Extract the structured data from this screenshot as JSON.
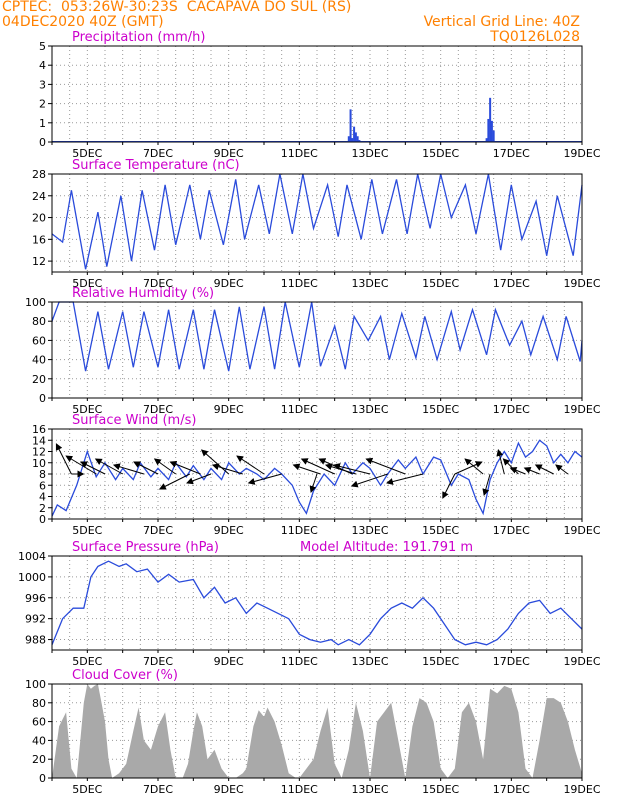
{
  "header": {
    "line1": "CPTEC:  053:26W-30:23S  CACAPAVA DO SUL (RS)",
    "line2_left": "04DEC2020 40Z (GMT)",
    "line2_right": "Vertical Grid Line: 40Z",
    "line3_right": "TQ0126L028"
  },
  "colors": {
    "header": "#ff8000",
    "title": "#cc00cc",
    "line": "#2a4bdb",
    "bar": "#2a4bdb",
    "cloud": "#a9a9a9",
    "wind_arrow": "#000000",
    "grid": "#9a9a9a"
  },
  "chart_data": [
    {
      "type": "bar",
      "title": "Precipitation (mm/h)",
      "xlim": [
        4,
        19
      ],
      "xticks": [
        5,
        7,
        9,
        11,
        13,
        15,
        17,
        19
      ],
      "xticklabels": [
        "5DEC",
        "7DEC",
        "9DEC",
        "11DEC",
        "13DEC",
        "15DEC",
        "17DEC",
        "19DEC"
      ],
      "ylim": [
        0,
        5
      ],
      "yticks": [
        0,
        1,
        2,
        3,
        4,
        5
      ],
      "grid": true,
      "x": [
        12.4,
        12.45,
        12.5,
        12.55,
        12.6,
        12.65,
        12.7,
        16.3,
        16.35,
        16.4,
        16.45,
        16.5
      ],
      "values": [
        0.3,
        1.7,
        0.2,
        0.8,
        0.5,
        0.3,
        0.1,
        0.2,
        1.2,
        2.3,
        1.1,
        0.6
      ]
    },
    {
      "type": "line",
      "title": "Surface Temperature (nC)",
      "xlim": [
        4,
        19
      ],
      "xticks": [
        5,
        7,
        9,
        11,
        13,
        15,
        17,
        19
      ],
      "xticklabels": [
        "5DEC",
        "7DEC",
        "9DEC",
        "11DEC",
        "13DEC",
        "15DEC",
        "17DEC",
        "19DEC"
      ],
      "ylim": [
        10,
        28
      ],
      "yticks": [
        12,
        16,
        20,
        24,
        28
      ],
      "grid": true,
      "x": [
        4.0,
        4.3,
        4.55,
        4.95,
        5.3,
        5.55,
        5.95,
        6.25,
        6.55,
        6.9,
        7.2,
        7.5,
        7.9,
        8.2,
        8.45,
        8.85,
        9.2,
        9.45,
        9.85,
        10.15,
        10.45,
        10.8,
        11.1,
        11.4,
        11.8,
        12.1,
        12.35,
        12.75,
        13.05,
        13.35,
        13.75,
        14.05,
        14.35,
        14.7,
        15.0,
        15.3,
        15.7,
        16.0,
        16.35,
        16.7,
        17.0,
        17.3,
        17.7,
        18.0,
        18.3,
        18.75,
        19.0
      ],
      "values": [
        17,
        15.5,
        25,
        10.5,
        21,
        11,
        24,
        12,
        25,
        14,
        26,
        15,
        26,
        16,
        25,
        15,
        27,
        16,
        26,
        17,
        28,
        17,
        28,
        18,
        26,
        16.5,
        26,
        16,
        27,
        17,
        27,
        17,
        28,
        18,
        28,
        20,
        26,
        17,
        28,
        14,
        26,
        16,
        23,
        13,
        24,
        13,
        26
      ]
    },
    {
      "type": "line",
      "title": "Relative Humidity (%)",
      "xlim": [
        4,
        19
      ],
      "xticks": [
        5,
        7,
        9,
        11,
        13,
        15,
        17,
        19
      ],
      "xticklabels": [
        "5DEC",
        "7DEC",
        "9DEC",
        "11DEC",
        "13DEC",
        "15DEC",
        "17DEC",
        "19DEC"
      ],
      "ylim": [
        0,
        100
      ],
      "yticks": [
        0,
        20,
        40,
        60,
        80,
        100
      ],
      "grid": true,
      "x": [
        4.0,
        4.2,
        4.6,
        4.95,
        5.3,
        5.6,
        6.0,
        6.3,
        6.6,
        7.0,
        7.3,
        7.6,
        8.0,
        8.3,
        8.6,
        9.0,
        9.3,
        9.6,
        10.0,
        10.3,
        10.6,
        11.0,
        11.35,
        11.6,
        12.0,
        12.3,
        12.55,
        12.95,
        13.3,
        13.55,
        13.9,
        14.3,
        14.55,
        14.9,
        15.3,
        15.55,
        15.9,
        16.3,
        16.55,
        16.95,
        17.3,
        17.55,
        17.9,
        18.3,
        18.55,
        18.95,
        19.0
      ],
      "values": [
        80,
        100,
        100,
        28,
        90,
        30,
        90,
        32,
        90,
        32,
        92,
        30,
        92,
        30,
        92,
        28,
        95,
        30,
        95,
        30,
        100,
        32,
        100,
        33,
        75,
        30,
        85,
        60,
        85,
        40,
        88,
        42,
        85,
        40,
        90,
        50,
        92,
        45,
        92,
        55,
        80,
        45,
        85,
        40,
        85,
        38,
        60
      ]
    },
    {
      "type": "line",
      "title": "Surface Wind (m/s)",
      "xlim": [
        4,
        19
      ],
      "xticks": [
        5,
        7,
        9,
        11,
        13,
        15,
        17,
        19
      ],
      "xticklabels": [
        "5DEC",
        "7DEC",
        "9DEC",
        "11DEC",
        "13DEC",
        "15DEC",
        "17DEC",
        "19DEC"
      ],
      "ylim": [
        0,
        16
      ],
      "yticks": [
        0,
        2,
        4,
        6,
        8,
        10,
        12,
        14,
        16
      ],
      "grid": true,
      "x": [
        4.0,
        4.15,
        4.4,
        4.7,
        5.0,
        5.25,
        5.5,
        5.8,
        6.0,
        6.3,
        6.5,
        6.8,
        7.0,
        7.3,
        7.5,
        7.8,
        8.0,
        8.3,
        8.5,
        8.8,
        9.0,
        9.3,
        9.5,
        9.8,
        10.0,
        10.3,
        10.5,
        10.8,
        11.0,
        11.2,
        11.4,
        11.7,
        12.0,
        12.3,
        12.5,
        12.8,
        13.0,
        13.3,
        13.5,
        13.8,
        14.0,
        14.3,
        14.5,
        14.8,
        15.0,
        15.3,
        15.5,
        15.8,
        16.0,
        16.2,
        16.4,
        16.6,
        16.8,
        17.0,
        17.2,
        17.4,
        17.6,
        17.8,
        18.0,
        18.2,
        18.4,
        18.6,
        18.8,
        19.0
      ],
      "values": [
        0.5,
        2.5,
        1.5,
        6,
        12,
        7.5,
        10,
        7,
        9,
        7,
        10,
        7.5,
        9,
        7,
        10,
        7.5,
        9.5,
        7,
        9,
        7,
        10,
        8,
        9,
        8,
        7,
        9,
        8,
        6,
        3,
        1,
        5,
        8,
        6,
        10,
        8,
        10,
        9,
        6,
        8,
        10.5,
        9,
        11,
        8,
        11,
        10.5,
        6,
        8,
        7,
        3.5,
        1,
        7,
        10,
        12,
        10,
        13.5,
        11,
        12,
        14,
        13,
        10,
        11.5,
        10,
        12,
        11
      ]
    },
    {
      "type": "line",
      "title": "Surface Pressure (hPa)",
      "annotations": [
        "Model Altitude: 191.791 m"
      ],
      "xlim": [
        4,
        19
      ],
      "xticks": [
        5,
        7,
        9,
        11,
        13,
        15,
        17,
        19
      ],
      "xticklabels": [
        "5DEC",
        "7DEC",
        "9DEC",
        "11DEC",
        "13DEC",
        "15DEC",
        "17DEC",
        "19DEC"
      ],
      "ylim": [
        986,
        1004
      ],
      "yticks": [
        988,
        992,
        996,
        1000,
        1004
      ],
      "grid": true,
      "x": [
        4.0,
        4.3,
        4.6,
        4.9,
        5.1,
        5.3,
        5.6,
        5.9,
        6.1,
        6.4,
        6.7,
        7.0,
        7.3,
        7.6,
        8.0,
        8.3,
        8.6,
        8.9,
        9.2,
        9.5,
        9.8,
        10.1,
        10.4,
        10.7,
        11.0,
        11.3,
        11.6,
        11.9,
        12.1,
        12.4,
        12.7,
        13.0,
        13.3,
        13.6,
        13.9,
        14.2,
        14.5,
        14.8,
        15.1,
        15.4,
        15.7,
        16.0,
        16.3,
        16.6,
        16.9,
        17.2,
        17.5,
        17.8,
        18.1,
        18.4,
        18.7,
        19.0
      ],
      "values": [
        987,
        992,
        994,
        994,
        1000,
        1002,
        1003,
        1002,
        1002.5,
        1001,
        1001.5,
        999,
        1000.5,
        999,
        999.5,
        996,
        998,
        995,
        996,
        993,
        995,
        994,
        993,
        992,
        989,
        988,
        987.5,
        988,
        987,
        988,
        987,
        989,
        992,
        994,
        995,
        994,
        996,
        994,
        991,
        988,
        987,
        987.5,
        987,
        988,
        990,
        993,
        995,
        995.5,
        993,
        994,
        992,
        990
      ]
    },
    {
      "type": "area",
      "title": "Cloud Cover (%)",
      "xlim": [
        4,
        19
      ],
      "xticks": [
        5,
        7,
        9,
        11,
        13,
        15,
        17,
        19
      ],
      "xticklabels": [
        "5DEC",
        "7DEC",
        "9DEC",
        "11DEC",
        "13DEC",
        "15DEC",
        "17DEC",
        "19DEC"
      ],
      "ylim": [
        0,
        100
      ],
      "yticks": [
        0,
        20,
        40,
        60,
        80,
        100
      ],
      "grid": true,
      "x": [
        4.0,
        4.2,
        4.4,
        4.55,
        4.7,
        4.8,
        4.9,
        5.0,
        5.1,
        5.2,
        5.3,
        5.4,
        5.5,
        5.6,
        5.7,
        5.9,
        6.1,
        6.3,
        6.45,
        6.6,
        6.8,
        7.0,
        7.2,
        7.35,
        7.5,
        7.7,
        7.85,
        8.0,
        8.1,
        8.25,
        8.4,
        8.6,
        8.8,
        9.0,
        9.2,
        9.4,
        9.5,
        9.7,
        9.85,
        10.0,
        10.1,
        10.3,
        10.5,
        10.7,
        10.9,
        11.0,
        11.2,
        11.4,
        11.6,
        11.8,
        12.0,
        12.2,
        12.4,
        12.6,
        12.8,
        13.0,
        13.2,
        13.4,
        13.6,
        13.8,
        14.0,
        14.2,
        14.4,
        14.6,
        14.8,
        15.0,
        15.2,
        15.4,
        15.6,
        15.8,
        16.0,
        16.2,
        16.4,
        16.6,
        16.8,
        17.0,
        17.2,
        17.4,
        17.6,
        17.8,
        18.0,
        18.2,
        18.4,
        18.6,
        18.8,
        19.0
      ],
      "values": [
        0,
        55,
        70,
        10,
        0,
        40,
        80,
        100,
        95,
        98,
        100,
        80,
        60,
        20,
        0,
        5,
        15,
        50,
        75,
        40,
        30,
        55,
        70,
        30,
        0,
        0,
        15,
        50,
        70,
        55,
        20,
        30,
        10,
        0,
        0,
        5,
        10,
        55,
        72,
        65,
        75,
        60,
        35,
        5,
        0,
        0,
        10,
        20,
        50,
        75,
        15,
        0,
        30,
        80,
        50,
        0,
        60,
        70,
        80,
        40,
        0,
        55,
        85,
        80,
        60,
        10,
        0,
        10,
        70,
        80,
        60,
        20,
        95,
        90,
        98,
        95,
        70,
        10,
        0,
        40,
        85,
        85,
        80,
        60,
        30,
        5
      ]
    }
  ],
  "wind_vectors": [
    {
      "x": 4.55,
      "u": -5,
      "v": 10
    },
    {
      "x": 4.55,
      "u": 4,
      "v": 0
    },
    {
      "x": 5.25,
      "u": -10,
      "v": 6
    },
    {
      "x": 5.5,
      "u": -8,
      "v": 4
    },
    {
      "x": 6.0,
      "u": -9,
      "v": 5
    },
    {
      "x": 6.6,
      "u": -10,
      "v": 3
    },
    {
      "x": 7.0,
      "u": -8,
      "v": 4
    },
    {
      "x": 7.5,
      "u": -7,
      "v": 5
    },
    {
      "x": 7.9,
      "u": -10,
      "v": -5
    },
    {
      "x": 8.2,
      "u": -10,
      "v": 4
    },
    {
      "x": 8.5,
      "u": -8,
      "v": -3
    },
    {
      "x": 9.0,
      "u": -9,
      "v": 8
    },
    {
      "x": 9.4,
      "u": -10,
      "v": 3
    },
    {
      "x": 10.0,
      "u": -9,
      "v": 6
    },
    {
      "x": 10.5,
      "u": -11,
      "v": -3
    },
    {
      "x": 11.5,
      "u": -2,
      "v": -6
    },
    {
      "x": 11.6,
      "u": -9,
      "v": 3
    },
    {
      "x": 12.0,
      "u": -11,
      "v": 5
    },
    {
      "x": 12.5,
      "u": -11,
      "v": 5
    },
    {
      "x": 12.6,
      "u": -10,
      "v": 3
    },
    {
      "x": 13.0,
      "u": -12,
      "v": 3
    },
    {
      "x": 13.5,
      "u": -12,
      "v": -4
    },
    {
      "x": 14.0,
      "u": -13,
      "v": 5
    },
    {
      "x": 14.5,
      "u": -12,
      "v": -3
    },
    {
      "x": 15.4,
      "u": -4,
      "v": -8
    },
    {
      "x": 15.4,
      "u": 9,
      "v": 4
    },
    {
      "x": 16.2,
      "u": -6,
      "v": 5
    },
    {
      "x": 16.4,
      "u": -2,
      "v": -7
    },
    {
      "x": 16.8,
      "u": -2,
      "v": 8
    },
    {
      "x": 17.2,
      "u": -5,
      "v": 5
    },
    {
      "x": 17.4,
      "u": -5,
      "v": 2
    },
    {
      "x": 17.8,
      "u": -5,
      "v": 2
    },
    {
      "x": 18.2,
      "u": -6,
      "v": 3
    },
    {
      "x": 18.6,
      "u": -4,
      "v": 3
    }
  ]
}
